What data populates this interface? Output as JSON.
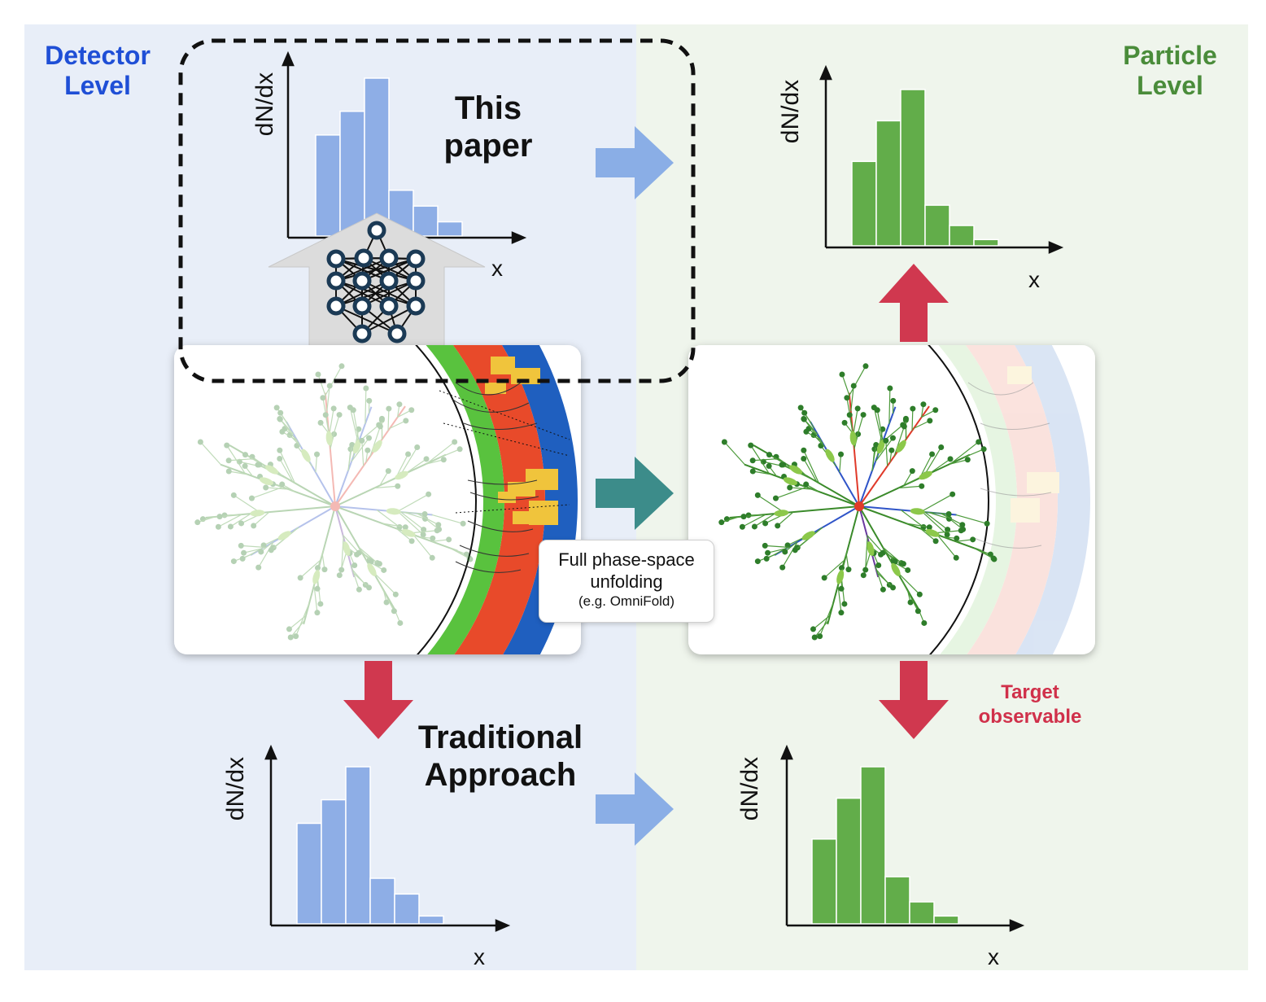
{
  "labels": {
    "detector_level": [
      "Detector",
      "Level"
    ],
    "particle_level": [
      "Particle",
      "Level"
    ],
    "this_paper": [
      "This",
      "paper"
    ],
    "traditional": [
      "Traditional",
      "Approach"
    ],
    "y_axis": "dN/dx",
    "x_axis": "x",
    "callout": [
      "Full phase-space",
      "unfolding",
      "(e.g. OmniFold)"
    ],
    "target": [
      "Target",
      "observable"
    ]
  },
  "colors": {
    "detector_bg": "#e8eef8",
    "particle_bg": "#eff5ec",
    "detector_text": "#1f4fd6",
    "particle_text": "#4a8c3a",
    "blue_bar": "#8eaee6",
    "green_bar": "#62ad4a",
    "blue_arrow": "#8aaee6",
    "teal_arrow": "#3c8c8a",
    "red_arrow": "#d0384f",
    "gray_arrow": "#dcdcdc",
    "nn_node": "#1b3a55"
  },
  "histograms": {
    "detector_top": [
      0.64,
      0.79,
      1.0,
      0.29,
      0.19,
      0.09
    ],
    "particle_top": [
      0.54,
      0.8,
      1.0,
      0.26,
      0.13,
      0.04
    ],
    "detector_bottom": [
      0.64,
      0.79,
      1.0,
      0.29,
      0.19,
      0.05
    ],
    "particle_bottom": [
      0.54,
      0.8,
      1.0,
      0.3,
      0.14,
      0.05
    ]
  }
}
